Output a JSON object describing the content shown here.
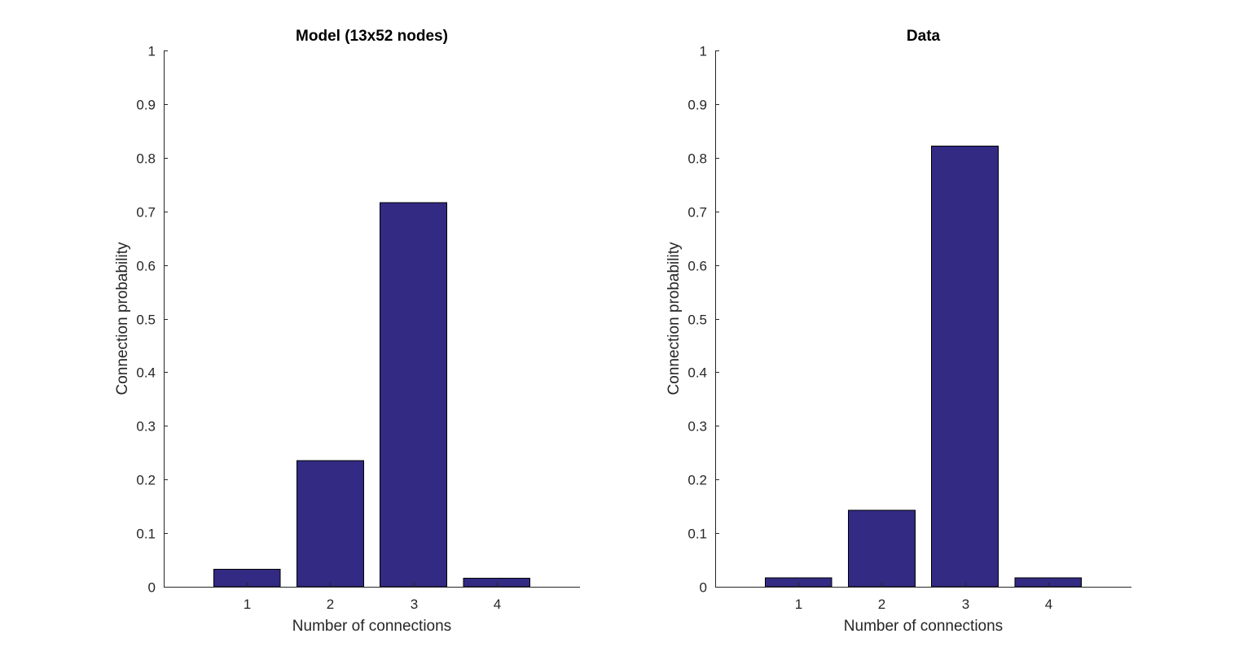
{
  "figure": {
    "charts": [
      {
        "title": "Model (13x52 nodes)"
      },
      {
        "title": "Data"
      }
    ]
  },
  "chart_data": [
    {
      "type": "bar",
      "title": "Model (13x52 nodes)",
      "xlabel": "Number of connections",
      "ylabel": "Connection probability",
      "categories": [
        "1",
        "2",
        "3",
        "4"
      ],
      "x": [
        1,
        2,
        3,
        4
      ],
      "values": [
        0.033,
        0.235,
        0.716,
        0.016
      ],
      "xlim": [
        0,
        5
      ],
      "ylim": [
        0,
        1
      ],
      "yticks": [
        0,
        0.1,
        0.2,
        0.3,
        0.4,
        0.5,
        0.6,
        0.7,
        0.8,
        0.9,
        1
      ],
      "ytick_labels": [
        "0",
        "0.1",
        "0.2",
        "0.3",
        "0.4",
        "0.5",
        "0.6",
        "0.7",
        "0.8",
        "0.9",
        "1"
      ],
      "bar_color": "#332a83",
      "grid": false
    },
    {
      "type": "bar",
      "title": "Data",
      "xlabel": "Number of connections",
      "ylabel": "Connection probability",
      "categories": [
        "1",
        "2",
        "3",
        "4"
      ],
      "x": [
        1,
        2,
        3,
        4
      ],
      "values": [
        0.017,
        0.143,
        0.822,
        0.017
      ],
      "xlim": [
        0,
        5
      ],
      "ylim": [
        0,
        1
      ],
      "yticks": [
        0,
        0.1,
        0.2,
        0.3,
        0.4,
        0.5,
        0.6,
        0.7,
        0.8,
        0.9,
        1
      ],
      "ytick_labels": [
        "0",
        "0.1",
        "0.2",
        "0.3",
        "0.4",
        "0.5",
        "0.6",
        "0.7",
        "0.8",
        "0.9",
        "1"
      ],
      "bar_color": "#332a83",
      "grid": false
    }
  ]
}
